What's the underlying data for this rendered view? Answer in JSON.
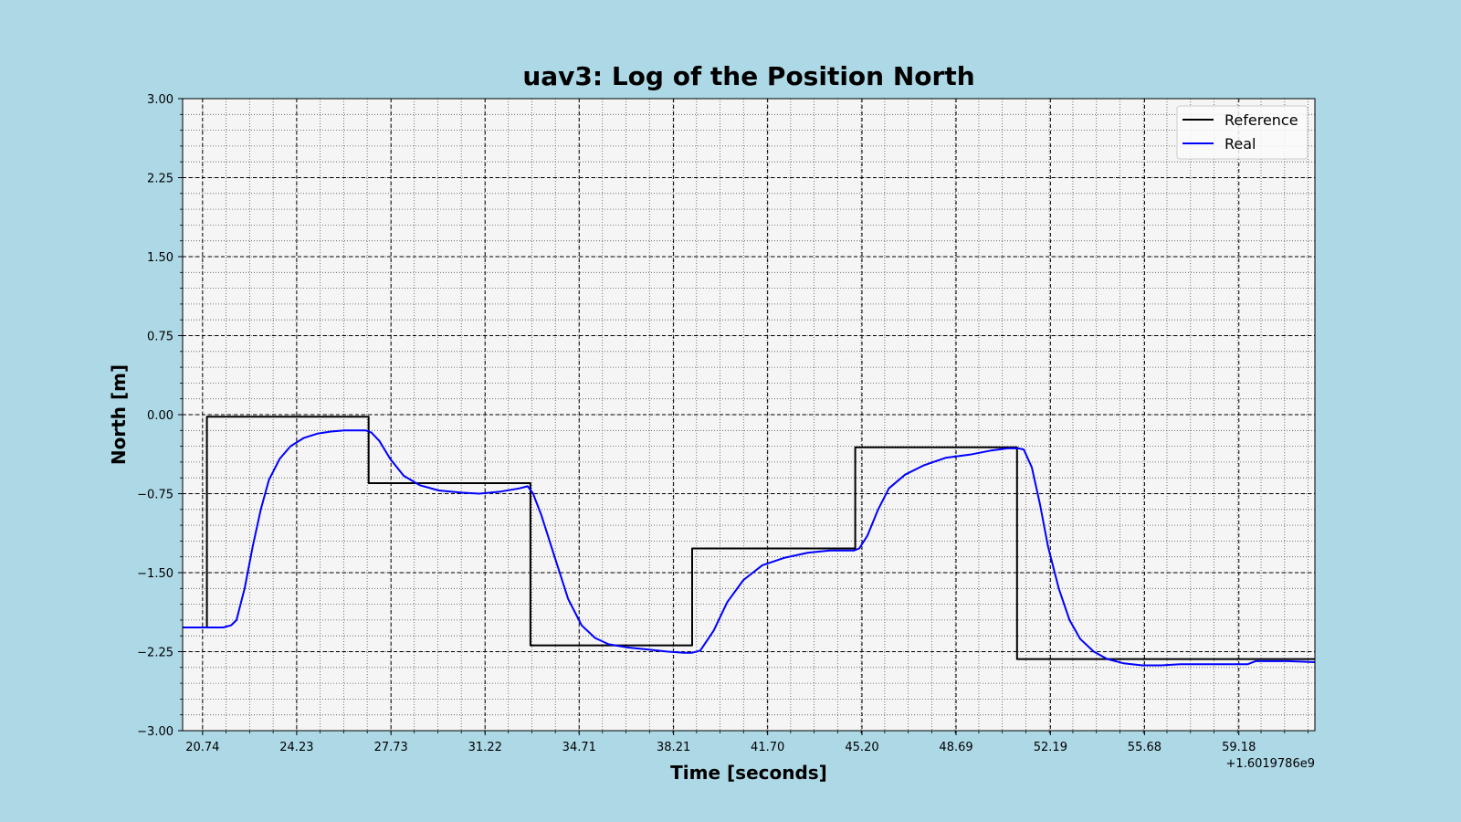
{
  "chart_data": {
    "type": "line",
    "title": "uav3: Log of the Position North",
    "xlabel": "Time [seconds]",
    "ylabel": "North [m]",
    "x_offset_label": "+1.6019786e9",
    "x_tick_labels": [
      "20.74",
      "24.23",
      "27.73",
      "31.22",
      "34.71",
      "38.21",
      "41.70",
      "45.20",
      "48.69",
      "52.19",
      "55.68",
      "59.18"
    ],
    "y_tick_labels": [
      "3.00",
      "2.25",
      "1.50",
      "0.75",
      "0.00",
      "−0.75",
      "−1.50",
      "−2.25",
      "−3.00"
    ],
    "xlim": [
      20.0,
      62.0
    ],
    "ylim": [
      -3.0,
      3.0
    ],
    "x_ticks": [
      20.74,
      24.23,
      27.73,
      31.22,
      34.71,
      38.21,
      41.7,
      45.2,
      48.69,
      52.19,
      55.68,
      59.18
    ],
    "y_ticks": [
      3.0,
      2.25,
      1.5,
      0.75,
      0.0,
      -0.75,
      -1.5,
      -2.25,
      -3.0
    ],
    "grid": true,
    "minor_grid": true,
    "legend_position": "top-right",
    "series": [
      {
        "name": "Reference",
        "color": "#000000",
        "x": [
          20.0,
          20.9,
          20.9,
          26.9,
          26.9,
          32.9,
          32.9,
          38.9,
          38.9,
          44.95,
          44.95,
          50.95,
          50.95,
          62.0
        ],
        "y": [
          -2.02,
          -2.02,
          -0.02,
          -0.02,
          -0.65,
          -0.65,
          -2.19,
          -2.19,
          -1.27,
          -1.27,
          -0.31,
          -0.31,
          -2.32,
          -2.32
        ]
      },
      {
        "name": "Real",
        "color": "#0000ff",
        "x": [
          20.0,
          21.0,
          21.5,
          21.8,
          22.0,
          22.3,
          22.6,
          22.9,
          23.2,
          23.6,
          24.0,
          24.5,
          25.0,
          25.5,
          26.0,
          26.5,
          26.8,
          27.0,
          27.3,
          27.7,
          28.2,
          28.8,
          29.5,
          30.3,
          31.0,
          31.8,
          32.5,
          32.8,
          33.0,
          33.3,
          33.8,
          34.3,
          34.8,
          35.3,
          35.8,
          36.5,
          37.3,
          38.0,
          38.6,
          38.9,
          39.2,
          39.7,
          40.2,
          40.8,
          41.5,
          42.3,
          43.2,
          44.0,
          44.5,
          44.9,
          45.1,
          45.4,
          45.8,
          46.2,
          46.8,
          47.5,
          48.3,
          49.2,
          50.0,
          50.6,
          51.0,
          51.2,
          51.5,
          51.8,
          52.1,
          52.5,
          52.9,
          53.3,
          53.8,
          54.3,
          54.9,
          55.6,
          56.3,
          57.0,
          57.5,
          58.3,
          59.0,
          59.5,
          59.8,
          60.5,
          61.0,
          62.0
        ],
        "y": [
          -2.02,
          -2.02,
          -2.02,
          -2.0,
          -1.95,
          -1.65,
          -1.25,
          -0.9,
          -0.62,
          -0.42,
          -0.3,
          -0.22,
          -0.18,
          -0.16,
          -0.15,
          -0.15,
          -0.15,
          -0.17,
          -0.25,
          -0.42,
          -0.58,
          -0.67,
          -0.72,
          -0.74,
          -0.75,
          -0.73,
          -0.7,
          -0.68,
          -0.75,
          -0.95,
          -1.35,
          -1.75,
          -2.0,
          -2.12,
          -2.18,
          -2.21,
          -2.23,
          -2.25,
          -2.26,
          -2.26,
          -2.24,
          -2.05,
          -1.78,
          -1.57,
          -1.43,
          -1.36,
          -1.31,
          -1.29,
          -1.29,
          -1.29,
          -1.27,
          -1.15,
          -0.9,
          -0.7,
          -0.57,
          -0.48,
          -0.41,
          -0.38,
          -0.34,
          -0.32,
          -0.32,
          -0.33,
          -0.5,
          -0.85,
          -1.25,
          -1.65,
          -1.95,
          -2.13,
          -2.25,
          -2.32,
          -2.36,
          -2.38,
          -2.38,
          -2.37,
          -2.37,
          -2.37,
          -2.37,
          -2.37,
          -2.34,
          -2.34,
          -2.34,
          -2.35
        ]
      }
    ]
  }
}
